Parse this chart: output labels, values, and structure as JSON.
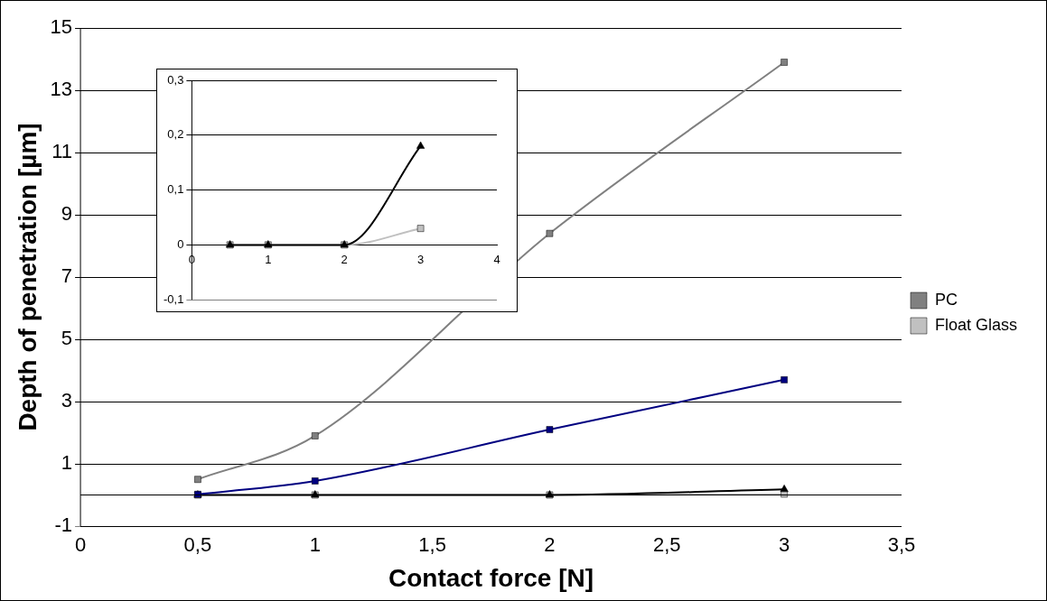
{
  "chart_data": [
    {
      "type": "line",
      "xlabel": "Contact force [N]",
      "ylabel": "Depth of penetration [µm]",
      "xlim": [
        0,
        3.5
      ],
      "xticks": [
        0,
        {
          "value": 0.5,
          "label": "0,5"
        },
        1,
        {
          "value": 1.5,
          "label": "1,5"
        },
        2,
        {
          "value": 2.5,
          "label": "2,5"
        },
        3,
        {
          "value": 3.5,
          "label": "3,5"
        }
      ],
      "ylim": [
        -1,
        15
      ],
      "yticks": [
        -1,
        1,
        3,
        5,
        7,
        9,
        11,
        13,
        15
      ],
      "grid": "y",
      "legend": "right",
      "line_style": "solid",
      "ref_lines": [
        {
          "axis": "y",
          "value": 0,
          "color": "#000000"
        }
      ],
      "series": [
        {
          "color": "#000080",
          "marker": "square",
          "x": [
            0.5,
            1,
            2,
            3
          ],
          "values": [
            0.02,
            0.45,
            2.1,
            3.7
          ]
        },
        {
          "color": "#000000",
          "marker": "triangle",
          "x": [
            0.5,
            1,
            2,
            3
          ],
          "values": [
            0,
            0,
            0,
            0.18
          ]
        },
        {
          "name": "PC",
          "color": "#808080",
          "marker": "square",
          "x": [
            0.5,
            1,
            2,
            3
          ],
          "values": [
            0.5,
            1.9,
            8.4,
            13.9
          ]
        },
        {
          "name": "Float Glass",
          "color": "#c0c0c0",
          "marker": "square",
          "x": [
            0.5,
            1,
            2,
            3
          ],
          "values": [
            0,
            0,
            0,
            0.03
          ]
        }
      ]
    },
    {
      "type": "line",
      "xlim": [
        0,
        4
      ],
      "xticks": [
        0,
        1,
        2,
        3,
        4
      ],
      "ylim": [
        -0.1,
        0.3
      ],
      "yticks": [
        {
          "value": -0.1,
          "label": "-0,1"
        },
        0,
        {
          "value": 0.1,
          "label": "0,1"
        },
        {
          "value": 0.2,
          "label": "0,2"
        },
        {
          "value": 0.3,
          "label": "0,3"
        }
      ],
      "grid": "y",
      "line_style": "solid",
      "series": [
        {
          "color": "#000000",
          "marker": "triangle",
          "x": [
            0.5,
            1,
            2,
            3
          ],
          "values": [
            0,
            0,
            0,
            0.18
          ]
        },
        {
          "color": "#c0c0c0",
          "marker": "square",
          "x": [
            0.5,
            1,
            2,
            3
          ],
          "values": [
            0,
            0,
            0,
            0.03
          ]
        }
      ]
    }
  ]
}
